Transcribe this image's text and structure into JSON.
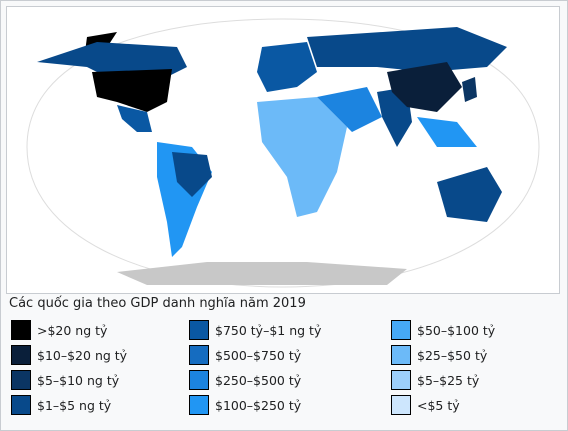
{
  "caption": "Các quốc gia theo GDP danh nghĩa năm 2019",
  "legend": [
    {
      "label": ">$20 ng tỷ",
      "color": "#000000"
    },
    {
      "label": "$10–$20 ng tỷ",
      "color": "#0a1f3a"
    },
    {
      "label": "$5–$10 ng tỷ",
      "color": "#0b3563"
    },
    {
      "label": "$1–$5 ng tỷ",
      "color": "#08498a"
    },
    {
      "label": "$750 tỷ–$1 ng tỷ",
      "color": "#0a58a3"
    },
    {
      "label": "$500–$750 tỷ",
      "color": "#156cc0"
    },
    {
      "label": "$250–$500 tỷ",
      "color": "#1c84e0"
    },
    {
      "label": "$100–$250 tỷ",
      "color": "#2196f3"
    },
    {
      "label": "$50–$100 tỷ",
      "color": "#46a9f6"
    },
    {
      "label": "$25–$50 tỷ",
      "color": "#6cbaf8"
    },
    {
      "label": "$5–$25 tỷ",
      "color": "#9ccffb"
    },
    {
      "label": "<$5 tỷ",
      "color": "#cde6fd"
    }
  ]
}
